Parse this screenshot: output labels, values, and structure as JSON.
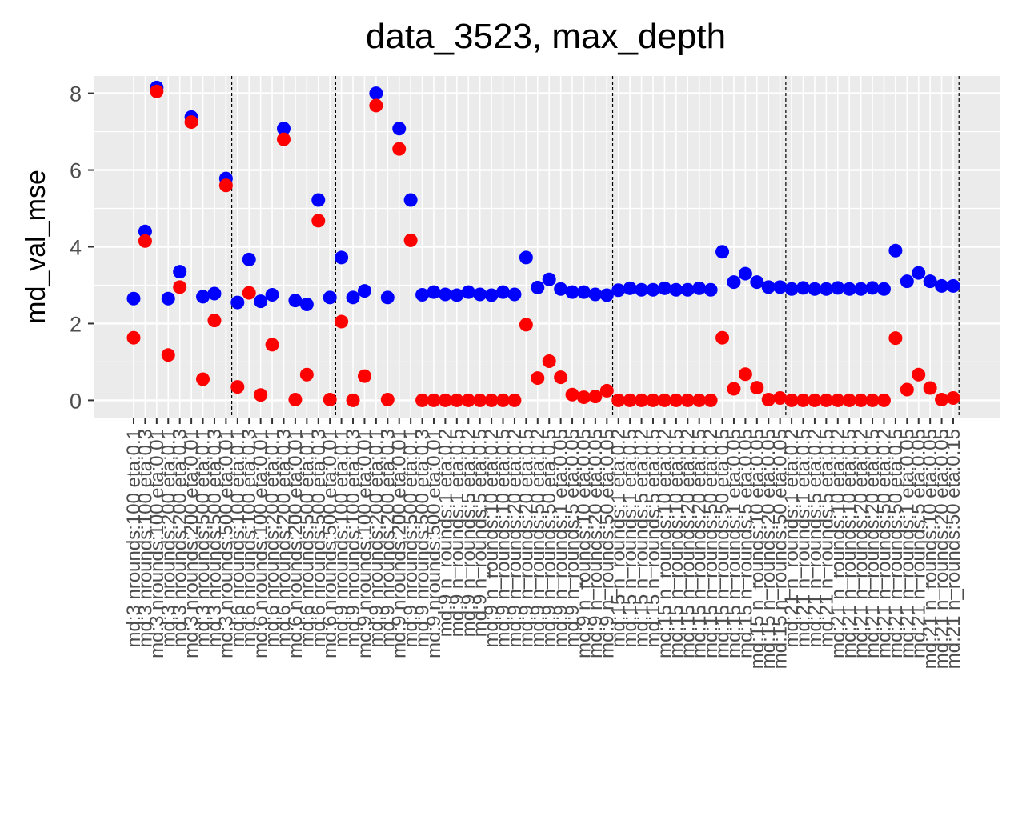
{
  "chart_data": {
    "type": "scatter",
    "title": "data_3523, max_depth",
    "xlabel": "",
    "ylabel": "md_val_mse",
    "ylim": [
      -0.45,
      8.45
    ],
    "yticks": [
      0,
      2,
      4,
      6,
      8
    ],
    "grid": true,
    "legend": "none",
    "colors": {
      "blue": "#0000ff",
      "red": "#ff0000",
      "panel": "#ebebeb",
      "grid": "#ffffff",
      "tick_text": "#4d4d4d",
      "ticks": "#333333"
    },
    "vlines_after_category_index": [
      8,
      17,
      41,
      56,
      71
    ],
    "categories": [
      "md:3 nrounds:100 eta:0.1",
      "md:3 nrounds:100 eta:0.3",
      "md:3 nrounds:100 eta:0.01",
      "md:3 nrounds:200 eta:0.1",
      "md:3 nrounds:200 eta:0.3",
      "md:3 nrounds:200 eta:0.01",
      "md:3 nrounds:500 eta:0.1",
      "md:3 nrounds:500 eta:0.3",
      "md:3 nrounds:500 eta:0.01",
      "md:6 nrounds:100 eta:0.1",
      "md:6 nrounds:100 eta:0.3",
      "md:6 nrounds:100 eta:0.01",
      "md:6 nrounds:200 eta:0.1",
      "md:6 nrounds:200 eta:0.3",
      "md:6 nrounds:200 eta:0.01",
      "md:6 nrounds:500 eta:0.1",
      "md:6 nrounds:500 eta:0.3",
      "md:6 nrounds:500 eta:0.01",
      "md:9 nrounds:100 eta:0.1",
      "md:9 nrounds:100 eta:0.3",
      "md:9 nrounds:100 eta:0.01",
      "md:9 nrounds:200 eta:0.1",
      "md:9 nrounds:200 eta:0.3",
      "md:9 nrounds:200 eta:0.01",
      "md:9 nrounds:500 eta:0.1",
      "md:9 nrounds:500 eta:0.3",
      "md:9 nrounds:500 eta:0.01",
      "md:9 n_rounds:1 eta:0.2",
      "md:9 n_rounds:1 eta:0.5",
      "md:9 n_rounds:5 eta:0.2",
      "md:9 n_rounds:5 eta:0.5",
      "md:9 n_rounds:10 eta:0.2",
      "md:9 n_rounds:10 eta:0.5",
      "md:9 n_rounds:20 eta:0.2",
      "md:9 n_rounds:20 eta:0.5",
      "md:9 n_rounds:50 eta:0.2",
      "md:9 n_rounds:50 eta:0.5",
      "md:9 n_rounds:1 eta:0.05",
      "md:9 n_rounds:5 eta:0.05",
      "md:9 n_rounds:10 eta:0.05",
      "md:9 n_rounds:20 eta:0.05",
      "md:9 n_rounds:50 eta:0.05",
      "md:15 n_rounds:1 eta:0.2",
      "md:15 n_rounds:1 eta:0.5",
      "md:15 n_rounds:5 eta:0.2",
      "md:15 n_rounds:5 eta:0.5",
      "md:15 n_rounds:10 eta:0.2",
      "md:15 n_rounds:10 eta:0.5",
      "md:15 n_rounds:20 eta:0.2",
      "md:15 n_rounds:20 eta:0.5",
      "md:15 n_rounds:50 eta:0.2",
      "md:15 n_rounds:50 eta:0.5",
      "md:15 n_rounds:1 eta:0.05",
      "md:15 n_rounds:5 eta:0.05",
      "md:15 n_rounds:10 eta:0.05",
      "md:15 n_rounds:20 eta:0.05",
      "md:15 n_rounds:50 eta:0.05",
      "md:21 n_rounds:1 eta:0.2",
      "md:21 n_rounds:1 eta:0.5",
      "md:21 n_rounds:5 eta:0.2",
      "md:21 n_rounds:5 eta:0.5",
      "md:21 n_rounds:10 eta:0.2",
      "md:21 n_rounds:10 eta:0.5",
      "md:21 n_rounds:20 eta:0.2",
      "md:21 n_rounds:20 eta:0.5",
      "md:21 n_rounds:50 eta:0.2",
      "md:21 n_rounds:50 eta:0.5",
      "md:21 n_rounds:1 eta:0.05",
      "md:21 n_rounds:5 eta:0.05",
      "md:21 n_rounds:10 eta:0.05",
      "md:21 n_rounds:20 eta:0.05",
      "md:21 n_rounds:50 eta:0.15"
    ],
    "series": [
      {
        "color": "blue",
        "values": [
          2.65,
          4.4,
          8.15,
          2.65,
          3.35,
          7.38,
          2.7,
          2.78,
          5.78,
          2.55,
          3.67,
          2.58,
          2.75,
          7.08,
          2.6,
          2.5,
          5.22,
          2.68,
          3.72,
          2.68,
          2.85,
          8.0,
          2.68,
          7.08,
          5.22,
          2.75,
          2.82,
          2.76,
          2.74,
          2.82,
          2.76,
          2.74,
          2.82,
          2.76,
          3.72,
          2.94,
          3.15,
          2.9,
          2.82,
          2.82,
          2.76,
          2.74,
          2.87,
          2.92,
          2.88,
          2.88,
          2.92,
          2.88,
          2.88,
          2.92,
          2.88,
          3.87,
          3.08,
          3.3,
          3.08,
          2.95,
          2.95,
          2.9,
          2.93,
          2.9,
          2.9,
          2.93,
          2.9,
          2.9,
          2.93,
          2.9,
          3.9,
          3.1,
          3.32,
          3.1,
          2.98,
          2.98
        ]
      },
      {
        "color": "red",
        "values": [
          1.63,
          4.15,
          8.05,
          1.18,
          2.95,
          7.25,
          0.55,
          2.08,
          5.6,
          0.35,
          2.8,
          0.14,
          1.45,
          6.8,
          0.02,
          0.67,
          4.68,
          0.02,
          2.05,
          0.0,
          0.63,
          7.68,
          0.02,
          6.55,
          4.17,
          0.0,
          0.0,
          0.0,
          0.0,
          0.0,
          0.0,
          0.0,
          0.0,
          0.0,
          1.97,
          0.58,
          1.02,
          0.6,
          0.15,
          0.08,
          0.1,
          0.25,
          0.0,
          0.0,
          0.0,
          0.0,
          0.0,
          0.0,
          0.0,
          0.0,
          0.0,
          1.63,
          0.3,
          0.68,
          0.33,
          0.02,
          0.06,
          0.0,
          0.0,
          0.0,
          0.0,
          0.0,
          0.0,
          0.0,
          0.0,
          0.0,
          1.62,
          0.28,
          0.67,
          0.32,
          0.02,
          0.06
        ]
      }
    ]
  }
}
